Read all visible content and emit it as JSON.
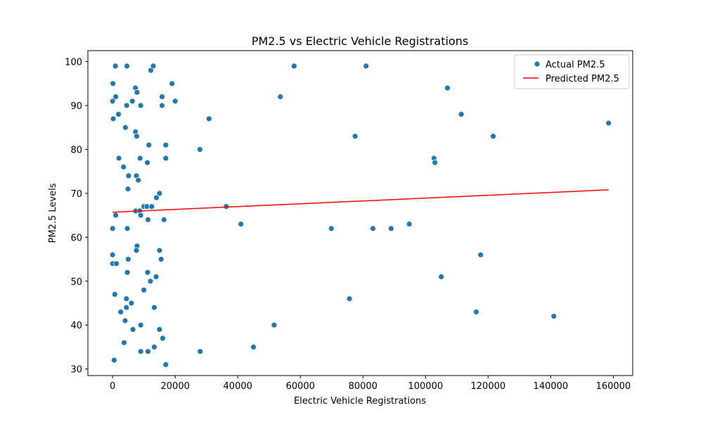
{
  "chart_data": {
    "type": "scatter",
    "title": "PM2.5 vs Electric Vehicle Registrations",
    "xlabel": "Electric Vehicle Registrations",
    "ylabel": "PM2.5 Levels",
    "xlim": [
      -7900,
      166200
    ],
    "ylim": [
      28.5,
      102.5
    ],
    "xticks": [
      0,
      20000,
      40000,
      60000,
      80000,
      100000,
      120000,
      140000,
      160000
    ],
    "yticks": [
      30,
      40,
      50,
      60,
      70,
      80,
      90,
      100
    ],
    "grid": false,
    "legend_position": "upper right",
    "series": [
      {
        "name": "Actual PM2.5",
        "kind": "scatter",
        "color": "#1f77b4",
        "points": [
          [
            900,
            99
          ],
          [
            4600,
            99
          ],
          [
            13000,
            99
          ],
          [
            12200,
            98
          ],
          [
            58000,
            99
          ],
          [
            81000,
            99
          ],
          [
            100,
            95
          ],
          [
            19000,
            95
          ],
          [
            7300,
            94
          ],
          [
            7800,
            93
          ],
          [
            1000,
            92
          ],
          [
            15800,
            92
          ],
          [
            53600,
            92
          ],
          [
            107000,
            94
          ],
          [
            0,
            91
          ],
          [
            6300,
            91
          ],
          [
            4500,
            90
          ],
          [
            9000,
            90
          ],
          [
            15800,
            90
          ],
          [
            20000,
            91
          ],
          [
            200,
            87
          ],
          [
            1900,
            88
          ],
          [
            30800,
            87
          ],
          [
            111400,
            88
          ],
          [
            158500,
            86
          ],
          [
            4100,
            85
          ],
          [
            7300,
            84
          ],
          [
            7700,
            83
          ],
          [
            77500,
            83
          ],
          [
            121600,
            83
          ],
          [
            11600,
            81
          ],
          [
            17000,
            81
          ],
          [
            27900,
            80
          ],
          [
            2000,
            78
          ],
          [
            8800,
            78
          ],
          [
            17000,
            78
          ],
          [
            102700,
            78
          ],
          [
            103000,
            77
          ],
          [
            11100,
            77
          ],
          [
            3500,
            76
          ],
          [
            5100,
            74
          ],
          [
            7600,
            74
          ],
          [
            8200,
            73
          ],
          [
            4900,
            71
          ],
          [
            15000,
            70
          ],
          [
            14000,
            69
          ],
          [
            36300,
            67
          ],
          [
            10000,
            67
          ],
          [
            11000,
            67
          ],
          [
            12500,
            67
          ],
          [
            7400,
            66
          ],
          [
            8700,
            66
          ],
          [
            1000,
            65
          ],
          [
            9000,
            65
          ],
          [
            11300,
            64
          ],
          [
            16400,
            64
          ],
          [
            0,
            62
          ],
          [
            4700,
            62
          ],
          [
            41000,
            63
          ],
          [
            69900,
            62
          ],
          [
            83200,
            62
          ],
          [
            89000,
            62
          ],
          [
            94800,
            63
          ],
          [
            7800,
            58
          ],
          [
            7600,
            57
          ],
          [
            15000,
            57
          ],
          [
            117600,
            56
          ],
          [
            0,
            56
          ],
          [
            5000,
            55
          ],
          [
            15500,
            55
          ],
          [
            0,
            54
          ],
          [
            1200,
            54
          ],
          [
            4700,
            52
          ],
          [
            11200,
            52
          ],
          [
            105000,
            51
          ],
          [
            13900,
            51
          ],
          [
            12100,
            50
          ],
          [
            10000,
            48
          ],
          [
            700,
            47
          ],
          [
            75700,
            46
          ],
          [
            4400,
            46
          ],
          [
            6000,
            45
          ],
          [
            4400,
            44
          ],
          [
            13300,
            44
          ],
          [
            2600,
            43
          ],
          [
            116200,
            43
          ],
          [
            141000,
            42
          ],
          [
            4000,
            41
          ],
          [
            9000,
            40
          ],
          [
            51600,
            40
          ],
          [
            6500,
            39
          ],
          [
            15000,
            39
          ],
          [
            16000,
            37
          ],
          [
            3700,
            36
          ],
          [
            45000,
            35
          ],
          [
            13300,
            35
          ],
          [
            9000,
            34
          ],
          [
            11300,
            34
          ],
          [
            28000,
            34
          ],
          [
            500,
            32
          ],
          [
            17000,
            31
          ]
        ]
      },
      {
        "name": "Predicted PM2.5",
        "kind": "line",
        "color": "#ff0000",
        "x": [
          0,
          158500
        ],
        "y": [
          65.7,
          70.8
        ]
      }
    ]
  }
}
